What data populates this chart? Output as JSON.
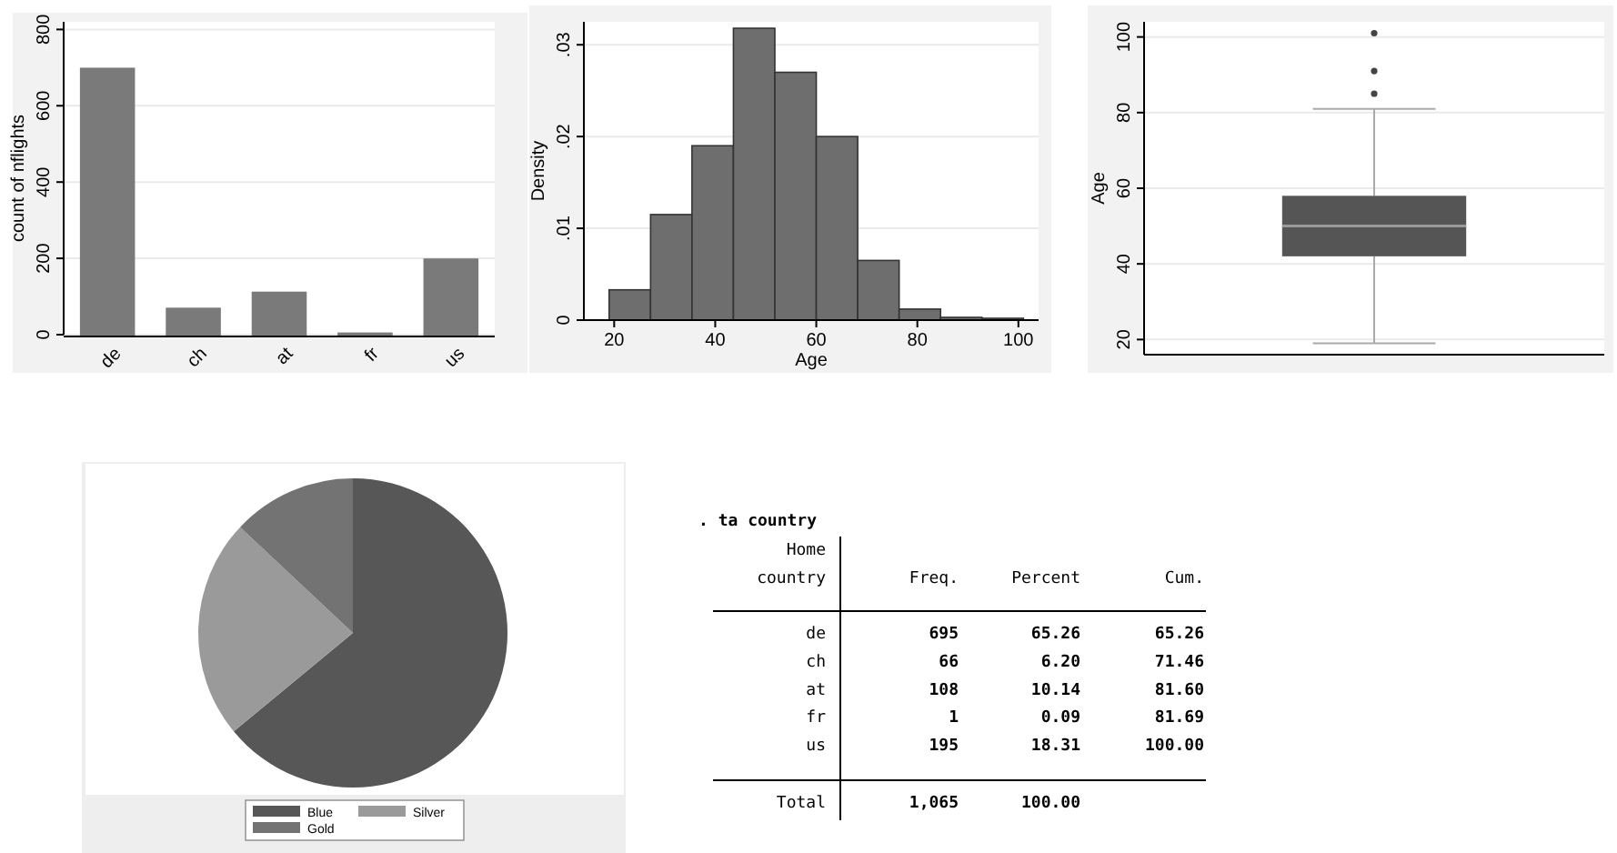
{
  "chart_data": [
    {
      "type": "bar",
      "ylabel": "count of nflights",
      "categories": [
        "de",
        "ch",
        "at",
        "fr",
        "us"
      ],
      "values": [
        695,
        66,
        108,
        1,
        195
      ],
      "color": "#7a7a7a",
      "ylim": [
        0,
        820
      ],
      "yticks": [
        0,
        200,
        400,
        600,
        800
      ],
      "grid": "y"
    },
    {
      "type": "histogram",
      "xlabel": "Age",
      "ylabel": "Density",
      "bins": [
        19,
        27.2,
        35.4,
        43.6,
        51.8,
        60,
        68.2,
        76.4,
        84.6,
        92.8,
        101
      ],
      "values": [
        0.0033,
        0.0115,
        0.019,
        0.0318,
        0.027,
        0.02,
        0.0065,
        0.0012,
        0.0003,
        0.0002
      ],
      "color": "#6e6e6e",
      "xlim": [
        14,
        104
      ],
      "xticks": [
        20,
        40,
        60,
        80,
        100
      ],
      "ylim": [
        0,
        0.0325
      ],
      "yticks": [
        {
          "value": 0,
          "label": "0"
        },
        {
          "value": 0.01,
          "label": ".01"
        },
        {
          "value": 0.02,
          "label": ".02"
        },
        {
          "value": 0.03,
          "label": ".03"
        }
      ],
      "grid": "y"
    },
    {
      "type": "box",
      "ylabel": "Age",
      "categories": [
        null
      ],
      "boxes": [
        {
          "low": 19,
          "q1": 42,
          "median": 50,
          "q3": 58,
          "high": 81,
          "outliers": [
            85,
            91,
            101
          ]
        }
      ],
      "color": "#555555",
      "ylim": [
        16,
        104
      ],
      "yticks": [
        20,
        40,
        60,
        80,
        100
      ],
      "grid": "y"
    },
    {
      "type": "pie",
      "categories": [
        "Blue",
        "Silver",
        "Gold"
      ],
      "values": [
        64,
        23,
        13
      ],
      "colors": [
        "#575757",
        "#9a9a9a",
        "#737373"
      ],
      "legend": "bottom"
    },
    {
      "type": "other",
      "title": ". ta country",
      "ylabel": "Home country",
      "categories": [
        "Freq.",
        "Percent",
        "Cum."
      ],
      "y_categories": [
        "de",
        "ch",
        "at",
        "fr",
        "us",
        "Total"
      ],
      "cell_labels": [
        [
          "695",
          "65.26",
          "65.26"
        ],
        [
          "66",
          "6.20",
          "71.46"
        ],
        [
          "108",
          "10.14",
          "81.60"
        ],
        [
          "1",
          "0.09",
          "81.69"
        ],
        [
          "195",
          "18.31",
          "100.00"
        ],
        [
          "1,065",
          "100.00",
          null
        ]
      ]
    }
  ]
}
